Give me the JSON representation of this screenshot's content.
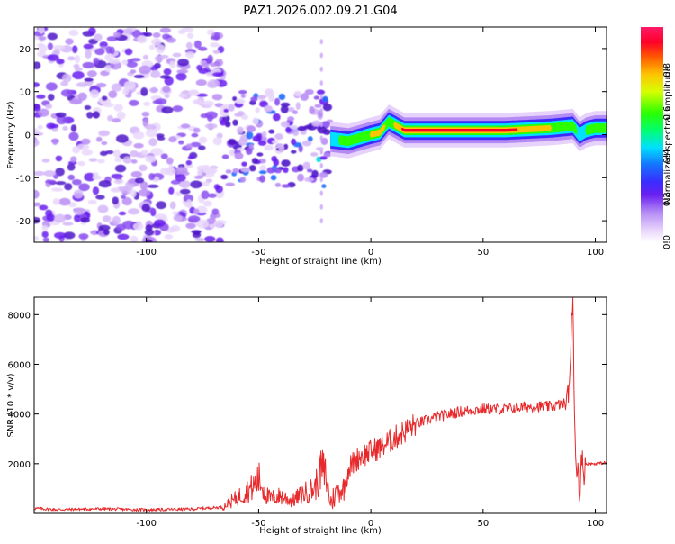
{
  "title": "PAZ1.2026.002.09.21.G04",
  "chart_data": [
    {
      "type": "heatmap",
      "name": "spectrogram",
      "xlabel": "Height of straight line (km)",
      "ylabel": "Frequency (Hz)",
      "xlim": [
        -150,
        105
      ],
      "ylim": [
        -25,
        25
      ],
      "x_ticks": [
        -100,
        -50,
        0,
        50,
        100
      ],
      "y_ticks": [
        -20,
        -10,
        0,
        10,
        20
      ],
      "colorbar": {
        "label": "Normalized spectral amplitude",
        "range": [
          0,
          1
        ],
        "ticks": [
          "0.0",
          "0.2",
          "0.4",
          "0.6",
          "0.8"
        ]
      },
      "features": {
        "noise_region_km": [
          -150,
          -66
        ],
        "scatter_region_km": [
          -66,
          -18
        ],
        "ridge": {
          "x": [
            -18,
            -10,
            0,
            4,
            8,
            15,
            40,
            60,
            80,
            90,
            93,
            96,
            100,
            105
          ],
          "y_hz": [
            -1,
            -1.5,
            0,
            0.5,
            3,
            1,
            1,
            1,
            1.5,
            2,
            0,
            1,
            1.5,
            1.5
          ],
          "peak_amplitude": [
            0.35,
            0.55,
            0.6,
            0.7,
            0.5,
            0.8,
            0.95,
            0.8,
            0.6,
            0.5,
            0.4,
            0.45,
            0.5,
            0.5
          ]
        }
      }
    },
    {
      "type": "line",
      "name": "snr",
      "xlabel": "Height of straight line (km)",
      "ylabel": "SNR (10 * v/v)",
      "xlim": [
        -150,
        105
      ],
      "ylim": [
        0,
        8700
      ],
      "x_ticks": [
        -100,
        -50,
        0,
        50,
        100
      ],
      "y_ticks": [
        2000,
        4000,
        6000,
        8000
      ],
      "color": "#e8292b",
      "series": [
        {
          "name": "SNR",
          "x": [
            -150,
            -140,
            -120,
            -100,
            -80,
            -66,
            -60,
            -55,
            -52,
            -50,
            -47,
            -45,
            -40,
            -35,
            -30,
            -25,
            -22,
            -20,
            -18,
            -15,
            -12,
            -10,
            -8,
            -5,
            -2,
            0,
            5,
            10,
            15,
            20,
            30,
            40,
            50,
            60,
            70,
            80,
            85,
            87,
            89,
            90,
            91,
            92,
            93,
            95,
            100,
            105
          ],
          "y": [
            200,
            150,
            180,
            140,
            170,
            250,
            600,
            900,
            1100,
            1400,
            800,
            600,
            700,
            500,
            800,
            1000,
            1800,
            1500,
            400,
            900,
            1000,
            1800,
            2000,
            2300,
            2400,
            2500,
            2700,
            3000,
            3300,
            3600,
            3900,
            4100,
            4200,
            4200,
            4300,
            4300,
            4400,
            4400,
            6000,
            8700,
            3000,
            1600,
            1400,
            2000,
            2000,
            2050
          ]
        }
      ]
    }
  ]
}
